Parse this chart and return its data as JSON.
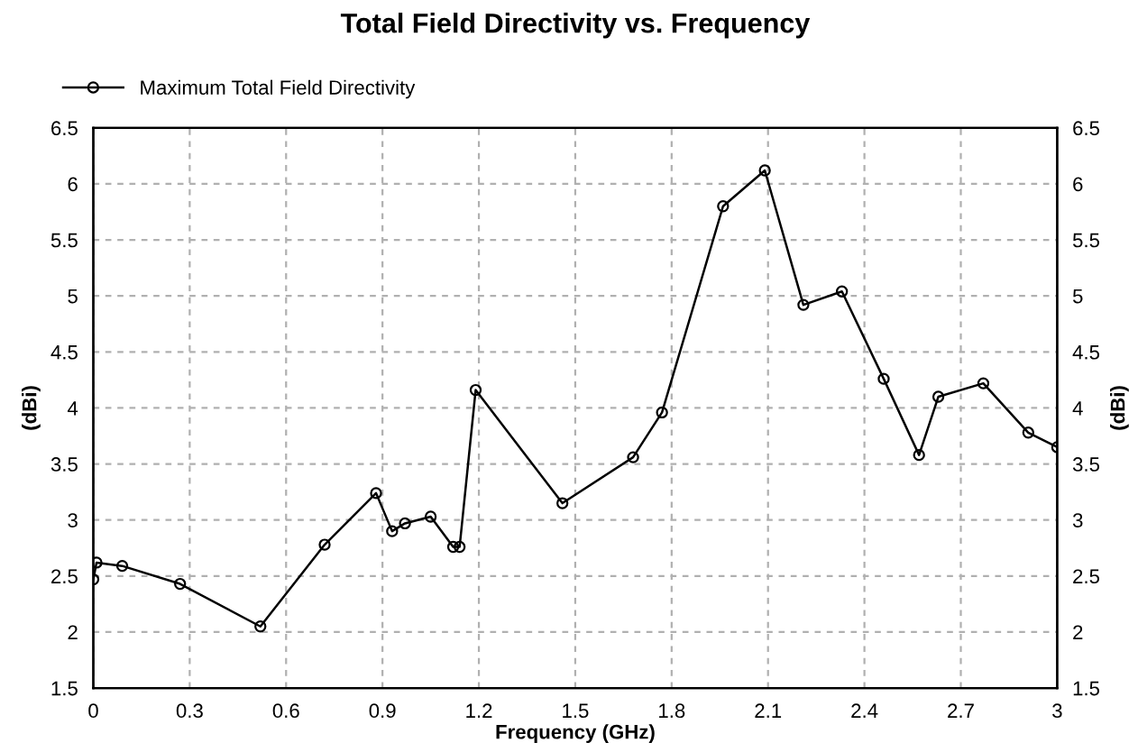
{
  "chart_data": {
    "type": "line",
    "title": "Total Field Directivity vs. Frequency",
    "xlabel": "Frequency (GHz)",
    "ylabel": "(dBi)",
    "y2label": "(dBi)",
    "xlim": [
      0,
      3
    ],
    "xticks": [
      0,
      0.3,
      0.6,
      0.9,
      1.2,
      1.5,
      1.8,
      2.1,
      2.4,
      2.7,
      3
    ],
    "ylim": [
      1.5,
      6.5
    ],
    "yticks": [
      1.5,
      2,
      2.5,
      3,
      3.5,
      4,
      4.5,
      5,
      5.5,
      6,
      6.5
    ],
    "y2lim": [
      1.5,
      6.5
    ],
    "y2ticks": [
      1.5,
      2,
      2.5,
      3,
      3.5,
      4,
      4.5,
      5,
      5.5,
      6,
      6.5
    ],
    "grid": true,
    "legend": "top left",
    "marker": "circle",
    "line_style": "solid",
    "series": [
      {
        "name": "Maximum Total Field Directivity",
        "color": "#000000",
        "x": [
          0,
          0.01,
          0.09,
          0.27,
          0.52,
          0.72,
          0.88,
          0.93,
          0.97,
          1.05,
          1.12,
          1.14,
          1.19,
          1.46,
          1.68,
          1.77,
          1.96,
          2.09,
          2.21,
          2.33,
          2.46,
          2.57,
          2.63,
          2.77,
          2.91,
          3.0
        ],
        "values": [
          2.47,
          2.62,
          2.59,
          2.43,
          2.05,
          2.78,
          3.24,
          2.9,
          2.97,
          3.03,
          2.76,
          2.76,
          4.16,
          3.15,
          3.56,
          3.96,
          5.8,
          6.12,
          4.92,
          5.04,
          4.26,
          3.58,
          4.1,
          4.22,
          3.78,
          3.65
        ]
      }
    ]
  }
}
